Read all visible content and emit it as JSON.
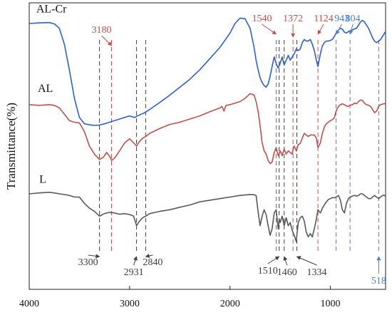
{
  "chart_data": {
    "type": "line",
    "title": "",
    "xlabel": "",
    "ylabel": "Transmittance(%)",
    "xlim": [
      4000,
      450
    ],
    "x_reversed": true,
    "xticks": [
      4000,
      3000,
      2000,
      1000
    ],
    "grid": false,
    "legend": "none",
    "series": [
      {
        "name": "AL-Cr",
        "color": "#2f5fd0",
        "x": [
          4000,
          3900,
          3800,
          3750,
          3700,
          3650,
          3600,
          3550,
          3500,
          3450,
          3400,
          3350,
          3300,
          3250,
          3200,
          3100,
          3000,
          2950,
          2900,
          2850,
          2800,
          2700,
          2600,
          2500,
          2400,
          2300,
          2200,
          2100,
          2000,
          1950,
          1900,
          1850,
          1800,
          1760,
          1740,
          1720,
          1700,
          1680,
          1660,
          1640,
          1620,
          1600,
          1580,
          1560,
          1540,
          1520,
          1500,
          1480,
          1460,
          1440,
          1420,
          1400,
          1380,
          1360,
          1340,
          1320,
          1300,
          1280,
          1260,
          1240,
          1220,
          1200,
          1180,
          1160,
          1140,
          1124,
          1100,
          1080,
          1060,
          1040,
          1020,
          1000,
          980,
          960,
          943,
          920,
          900,
          880,
          860,
          840,
          820,
          804,
          780,
          760,
          740,
          720,
          700,
          680,
          660,
          640,
          620,
          600,
          580,
          560,
          540,
          518,
          500,
          480,
          460,
          450
        ],
        "y": [
          97.5,
          97.7,
          97.8,
          97.4,
          96,
          91,
          83,
          74,
          68,
          66,
          65.7,
          65.5,
          65.6,
          66,
          66.5,
          67.5,
          68.5,
          68,
          68.8,
          69.5,
          70.5,
          72.7,
          75,
          77.5,
          80,
          83,
          86.5,
          90,
          94.5,
          97.5,
          99.2,
          99,
          96,
          90,
          86,
          83,
          80.5,
          79,
          78,
          77.5,
          78.5,
          81,
          84,
          87,
          85,
          83.5,
          85,
          87,
          84.5,
          86,
          87.5,
          86,
          87,
          88,
          89.5,
          89,
          89.5,
          91.5,
          92.5,
          92,
          92,
          92.5,
          91,
          89,
          86,
          84,
          88,
          90.5,
          91.5,
          92,
          92,
          92.2,
          92.5,
          93.5,
          94.5,
          95.5,
          96,
          95.7,
          94.8,
          94.5,
          95,
          95.2,
          95.5,
          95.8,
          96,
          97,
          98,
          98.5,
          98,
          97,
          96,
          94.5,
          93,
          92,
          91.5,
          92,
          92.5,
          93.5,
          94.5,
          95
        ]
      },
      {
        "name": "AL",
        "color": "#c0504d",
        "x": [
          4000,
          3900,
          3800,
          3750,
          3700,
          3650,
          3600,
          3550,
          3500,
          3450,
          3400,
          3350,
          3300,
          3260,
          3230,
          3200,
          3180,
          3150,
          3100,
          3050,
          3000,
          2960,
          2931,
          2900,
          2870,
          2840,
          2800,
          2700,
          2600,
          2500,
          2400,
          2300,
          2200,
          2100,
          2080,
          2060,
          2040,
          2000,
          1900,
          1850,
          1800,
          1760,
          1740,
          1720,
          1700,
          1680,
          1660,
          1640,
          1620,
          1600,
          1580,
          1560,
          1540,
          1520,
          1500,
          1480,
          1460,
          1440,
          1420,
          1400,
          1380,
          1372,
          1360,
          1340,
          1320,
          1300,
          1280,
          1260,
          1240,
          1220,
          1200,
          1180,
          1160,
          1140,
          1124,
          1100,
          1080,
          1060,
          1040,
          1020,
          1000,
          980,
          960,
          943,
          920,
          900,
          880,
          860,
          840,
          820,
          804,
          780,
          760,
          740,
          720,
          700,
          680,
          660,
          640,
          620,
          600,
          580,
          560,
          540,
          518,
          500,
          480,
          460,
          450
        ],
        "y": [
          72,
          71.8,
          72,
          71.8,
          71,
          69,
          67,
          66.5,
          66.3,
          63.5,
          59,
          56.5,
          54.8,
          55.5,
          57,
          55.8,
          54.5,
          55.2,
          57.5,
          60,
          61.3,
          60,
          59,
          60.5,
          61.5,
          62,
          63,
          64.5,
          65.8,
          66.5,
          67.5,
          68.5,
          69.8,
          71,
          71.5,
          70,
          71.8,
          72,
          73,
          74,
          75.5,
          75,
          73,
          70,
          65.5,
          60,
          57.5,
          56.5,
          54.5,
          53.5,
          54,
          57,
          58.5,
          56,
          57.5,
          56,
          58,
          56.5,
          57.5,
          57,
          56.5,
          58,
          59,
          57.5,
          59.5,
          59.8,
          61.5,
          63,
          62.5,
          62,
          62.5,
          62.5,
          62.5,
          61.5,
          58.5,
          60,
          63,
          65,
          66,
          66.5,
          67,
          67.3,
          68,
          70,
          71.5,
          72,
          72.3,
          72,
          71.6,
          71.5,
          71.8,
          72,
          72.5,
          72.3,
          73,
          73.5,
          73.3,
          72.5,
          72,
          71.8,
          71.5,
          70.5,
          69.5,
          70,
          71.5,
          72,
          72.2,
          72.3,
          72.5
        ]
      },
      {
        "name": "L",
        "color": "#595959",
        "x": [
          4000,
          3900,
          3800,
          3750,
          3700,
          3650,
          3600,
          3550,
          3500,
          3450,
          3400,
          3350,
          3300,
          3250,
          3200,
          3150,
          3100,
          3050,
          3000,
          2960,
          2931,
          2900,
          2870,
          2840,
          2800,
          2700,
          2600,
          2500,
          2400,
          2300,
          2200,
          2100,
          2000,
          1900,
          1800,
          1760,
          1740,
          1720,
          1700,
          1680,
          1660,
          1640,
          1620,
          1600,
          1580,
          1560,
          1540,
          1520,
          1510,
          1500,
          1480,
          1460,
          1440,
          1420,
          1400,
          1380,
          1360,
          1340,
          1334,
          1320,
          1300,
          1280,
          1260,
          1240,
          1220,
          1200,
          1180,
          1160,
          1140,
          1124,
          1100,
          1080,
          1060,
          1040,
          1020,
          1000,
          980,
          960,
          943,
          920,
          900,
          880,
          860,
          840,
          820,
          804,
          780,
          760,
          740,
          720,
          700,
          680,
          660,
          640,
          620,
          600,
          580,
          560,
          540,
          518,
          500,
          480,
          460,
          450
        ],
        "y": [
          44,
          44.3,
          44.5,
          44.3,
          44,
          43.8,
          43.5,
          43,
          43,
          41,
          39.5,
          38.5,
          37,
          37.8,
          38.2,
          38,
          37.6,
          37.8,
          37.5,
          37,
          34,
          35.5,
          36.5,
          37,
          37.8,
          38.5,
          39,
          39.8,
          40.5,
          41.5,
          42,
          42.5,
          43,
          43.5,
          43.8,
          43.7,
          43.5,
          38.5,
          34,
          37,
          39,
          37.5,
          34,
          31,
          33,
          38,
          39,
          33,
          36,
          35,
          37,
          34,
          36.5,
          34,
          35,
          32.5,
          31,
          29,
          31,
          35,
          36.5,
          37,
          35.5,
          32,
          30.5,
          31.5,
          30.5,
          33,
          36,
          39,
          38,
          39.5,
          40.5,
          41.5,
          42.2,
          42.5,
          42.8,
          42.8,
          43,
          43.5,
          42,
          39,
          38,
          41,
          42.5,
          43,
          43.3,
          43.5,
          43.3,
          43.5,
          44,
          44,
          43.5,
          43,
          42.5,
          42.5,
          43,
          43.5,
          43,
          42.5,
          43,
          43.5,
          43.5,
          43.2
        ]
      }
    ],
    "series_labels": [
      {
        "text": "AL-Cr",
        "x": 3930,
        "y": 101
      },
      {
        "text": "AL",
        "x": 3915,
        "y": 76
      },
      {
        "text": "L",
        "x": 3900,
        "y": 47.5
      }
    ],
    "markers": [
      {
        "x": 3300,
        "label": "3300",
        "color": "#404040",
        "position": "bottom"
      },
      {
        "x": 3180,
        "label": "3180",
        "color": "#c0504d",
        "position": "top"
      },
      {
        "x": 2931,
        "label": "2931",
        "color": "#404040",
        "position": "bottom"
      },
      {
        "x": 2840,
        "label": "2840",
        "color": "#404040",
        "position": "bottom"
      },
      {
        "x": 1540,
        "label": "1540",
        "color": "#c0504d",
        "position": "top"
      },
      {
        "x": 1510,
        "label": "1510",
        "color": "#404040",
        "position": "bottom"
      },
      {
        "x": 1460,
        "label": "1460",
        "color": "#404040",
        "position": "bottom"
      },
      {
        "x": 1372,
        "label": "1372",
        "color": "#c0504d",
        "position": "top"
      },
      {
        "x": 1334,
        "label": "1334",
        "color": "#404040",
        "position": "bottom"
      },
      {
        "x": 1124,
        "label": "1124",
        "color": "#c0504d",
        "position": "top"
      },
      {
        "x": 943,
        "label": "943",
        "color": "#4a7fc1",
        "position": "top"
      },
      {
        "x": 804,
        "label": "804",
        "color": "#4a7fc1",
        "position": "top"
      },
      {
        "x": 518,
        "label": "518",
        "color": "#4a7fc1",
        "position": "bottom"
      }
    ]
  }
}
